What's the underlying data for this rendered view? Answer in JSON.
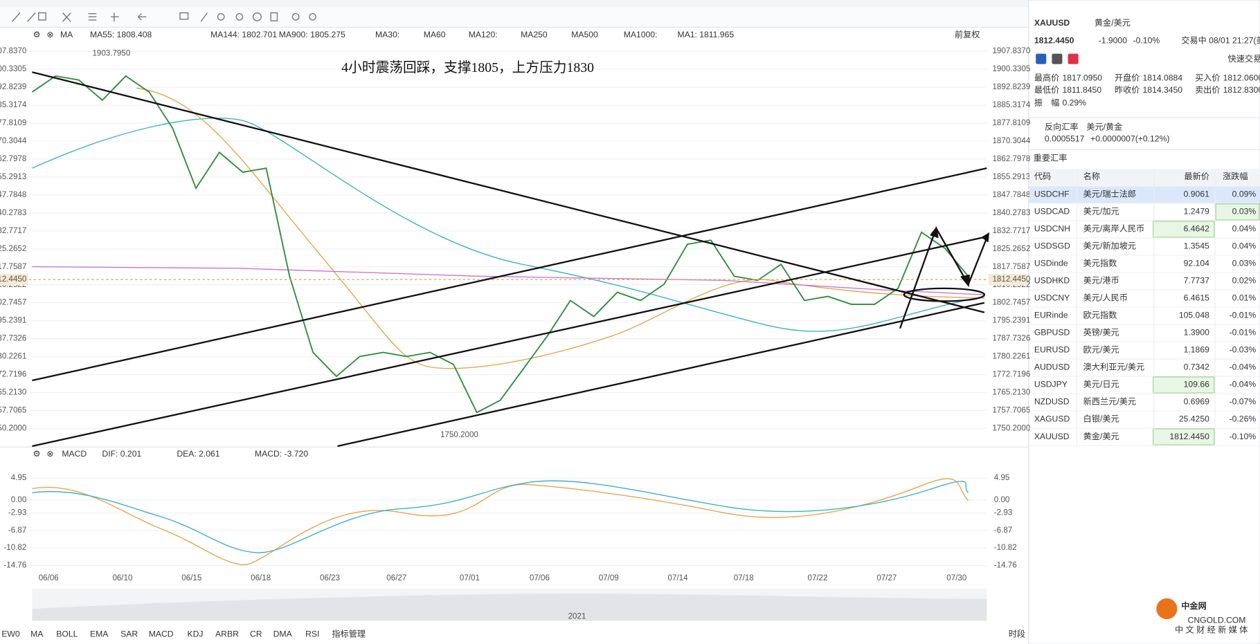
{
  "chart": {
    "indicator": "MA",
    "ma_legend": [
      "MA55: 1808.408",
      "MA144: 1802.701",
      "MA900: 1805.275",
      "MA30:",
      "MA60",
      "MA120:",
      "MA250",
      "MA500",
      "MA1000:",
      "MA1: 1811.965"
    ],
    "adjust": "前复权",
    "annotation": "4小时震荡回踩，支撑1805，上方压力1830",
    "high_label": {
      "value": 1903.795,
      "label": "1903.7950"
    },
    "low_label": {
      "value": 1750.2,
      "label": "1750.2000"
    },
    "current": {
      "value": 1812.445,
      "label": "1812.4450"
    },
    "ylim": [
      1743.5,
      1910.85
    ],
    "yticks": [
      {
        "value": 1907.837,
        "label": "1907.8370"
      },
      {
        "value": 1900.3305,
        "label": "1900.3305"
      },
      {
        "value": 1892.8239,
        "label": "1892.8239"
      },
      {
        "value": 1885.3174,
        "label": "1885.3174"
      },
      {
        "value": 1877.8109,
        "label": "1877.8109"
      },
      {
        "value": 1870.3044,
        "label": "1870.3044"
      },
      {
        "value": 1862.7978,
        "label": "1862.7978"
      },
      {
        "value": 1855.2913,
        "label": "1855.2913"
      },
      {
        "value": 1847.7848,
        "label": "1847.7848"
      },
      {
        "value": 1840.2783,
        "label": "1840.2783"
      },
      {
        "value": 1832.7717,
        "label": "1832.7717"
      },
      {
        "value": 1825.2652,
        "label": "1825.2652"
      },
      {
        "value": 1817.7587,
        "label": "1817.7587"
      },
      {
        "value": 1810.2522,
        "label": "1810.2522"
      },
      {
        "value": 1802.7457,
        "label": "1802.7457"
      },
      {
        "value": 1795.2391,
        "label": "1795.2391"
      },
      {
        "value": 1787.7326,
        "label": "1787.7326"
      },
      {
        "value": 1780.2261,
        "label": "1780.2261"
      },
      {
        "value": 1772.7196,
        "label": "1772.7196"
      },
      {
        "value": 1765.213,
        "label": "1765.2130"
      },
      {
        "value": 1757.7065,
        "label": "1757.7065"
      },
      {
        "value": 1750.2,
        "label": "1750.2000"
      }
    ],
    "closes": [
      1890.8,
      1897.5,
      1895.8,
      1887.4,
      1897.5,
      1890.8,
      1875.7,
      1850.6,
      1865.6,
      1857.3,
      1859.0,
      1813.8,
      1782.0,
      1772.0,
      1780.3,
      1782.0,
      1780.3,
      1782.0,
      1777.0,
      1756.9,
      1762.0,
      1775.3,
      1788.7,
      1803.7,
      1797.0,
      1807.1,
      1803.7,
      1810.5,
      1827.2,
      1828.9,
      1813.8,
      1812.1,
      1818.8,
      1803.7,
      1805.4,
      1802.1,
      1802.1,
      1808.8,
      1832.2,
      1825.5,
      1813.8
    ],
    "dates": [
      "06/06",
      "06/10",
      "06/15",
      "06/18",
      "06/23",
      "06/27",
      "07/01",
      "07/06",
      "07/09",
      "07/14",
      "07/18",
      "07/22",
      "07/27",
      "07/30"
    ],
    "year": "2021"
  },
  "macd": {
    "name": "MACD",
    "dif": "DIF: 0.201",
    "dea": "DEA: 2.061",
    "macd": "MACD: -3.720",
    "ylim": [
      -16.4,
      11.6
    ],
    "yticks": [
      4.95,
      {
        "value": 0,
        "label": "0.00"
      },
      -2.93,
      -6.87,
      -10.82,
      -14.76
    ]
  },
  "quote": {
    "symbol": "XAUUSD",
    "name": "黄金/美元",
    "price": "1812.4450",
    "change": "-1.9000",
    "change_pct": "-0.10%",
    "status": "交易中 08/01 21:27(美",
    "quick_trade": "快速交易",
    "stats": [
      [
        "最高价",
        "1817.0950"
      ],
      [
        "开盘价",
        "1814.0884"
      ],
      [
        "买入价",
        "1812.0600"
      ],
      [
        "最低价",
        "1811.8450"
      ],
      [
        "昨收价",
        "1814.3450"
      ],
      [
        "卖出价",
        "1812.8300"
      ],
      [
        "振　幅",
        "0.29%"
      ]
    ],
    "reverse_label": "反向汇率",
    "reverse_pair": "美元/黄金",
    "reverse_price": "0.0005517",
    "reverse_change": "+0.0000007(+0.12%)"
  },
  "rates": {
    "title": "重要汇率",
    "headers": [
      "代码",
      "名称",
      "最新价",
      "涨跌幅"
    ],
    "rows": [
      [
        "USDCHF",
        "美元/瑞士法郎",
        "0.9061",
        "0.09%"
      ],
      [
        "USDCAD",
        "美元/加元",
        "1.2479",
        "0.03%"
      ],
      [
        "USDCNH",
        "美元/离岸人民币",
        "6.4642",
        "0.04%"
      ],
      [
        "USDSGD",
        "美元/新加坡元",
        "1.3545",
        "0.04%"
      ],
      [
        "USDinde",
        "美元指数",
        "92.104",
        "0.03%"
      ],
      [
        "USDHKD",
        "美元/港币",
        "7.7737",
        "0.02%"
      ],
      [
        "USDCNY",
        "美元/人民币",
        "6.4615",
        "0.01%"
      ],
      [
        "EURinde",
        "欧元指数",
        "105.048",
        "-0.01%"
      ],
      [
        "GBPUSD",
        "英镑/美元",
        "1.3900",
        "-0.01%"
      ],
      [
        "EURUSD",
        "欧元/美元",
        "1.1869",
        "-0.03%"
      ],
      [
        "AUDUSD",
        "澳大利亚元/美元",
        "0.7342",
        "-0.04%"
      ],
      [
        "USDJPY",
        "美元/日元",
        "109.66",
        "-0.04%"
      ],
      [
        "NZDUSD",
        "新西兰元/美元",
        "0.6969",
        "-0.07%"
      ],
      [
        "XAGUSD",
        "白银/美元",
        "25.4250",
        "-0.26%"
      ],
      [
        "XAUUSD",
        "黄金/美元",
        "1812.4450",
        "-0.10%"
      ]
    ]
  },
  "tabs": [
    "EW0",
    "MA",
    "BOLL",
    "EMA",
    "SAR",
    "MACD",
    "KDJ",
    "ARBR",
    "CR",
    "DMA",
    "RSI",
    "指标管理"
  ],
  "period": "时段",
  "watermark": {
    "name": "中金网",
    "url": "CNGOLD.COM",
    "slogan": "中 文 财 经 新 媒 体"
  }
}
